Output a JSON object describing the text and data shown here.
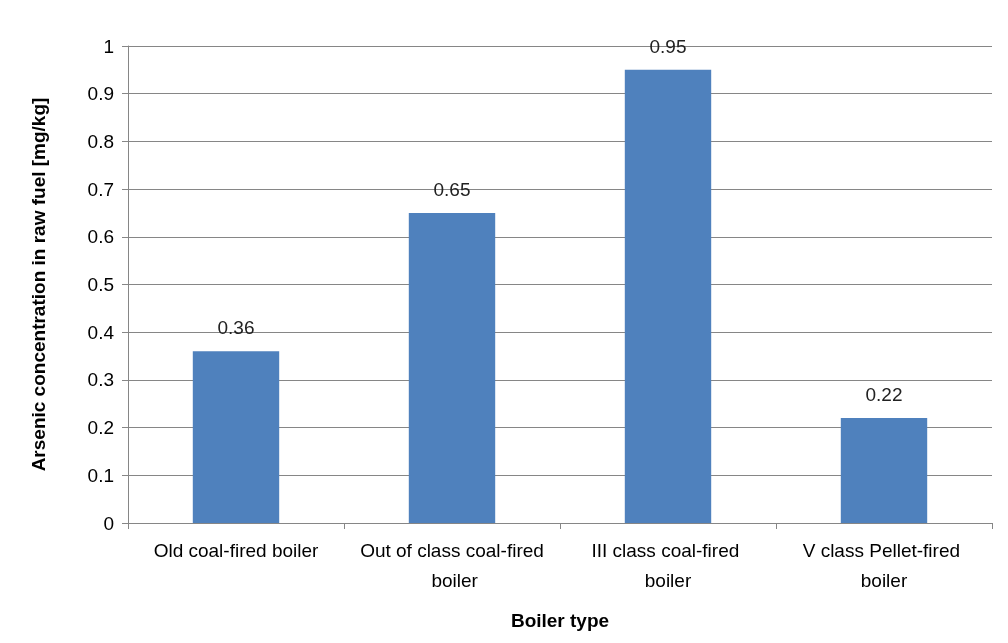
{
  "chart_data": {
    "type": "bar",
    "xlabel": "Boiler type",
    "ylabel": "Arsenic concentration in raw fuel [mg/kg]",
    "categories": [
      "Old coal-fired boiler",
      "Out of class coal-fired boiler",
      "III class coal-fired boiler",
      "V class Pellet-fired boiler"
    ],
    "values": [
      0.36,
      0.65,
      0.95,
      0.22
    ],
    "color": "#4f81bd",
    "ylim": [
      0,
      1
    ],
    "yticks": [
      0,
      0.1,
      0.2,
      0.3,
      0.4,
      0.5,
      0.6,
      0.7,
      0.8,
      0.9,
      1
    ],
    "grid": "y",
    "data_labels": true
  }
}
